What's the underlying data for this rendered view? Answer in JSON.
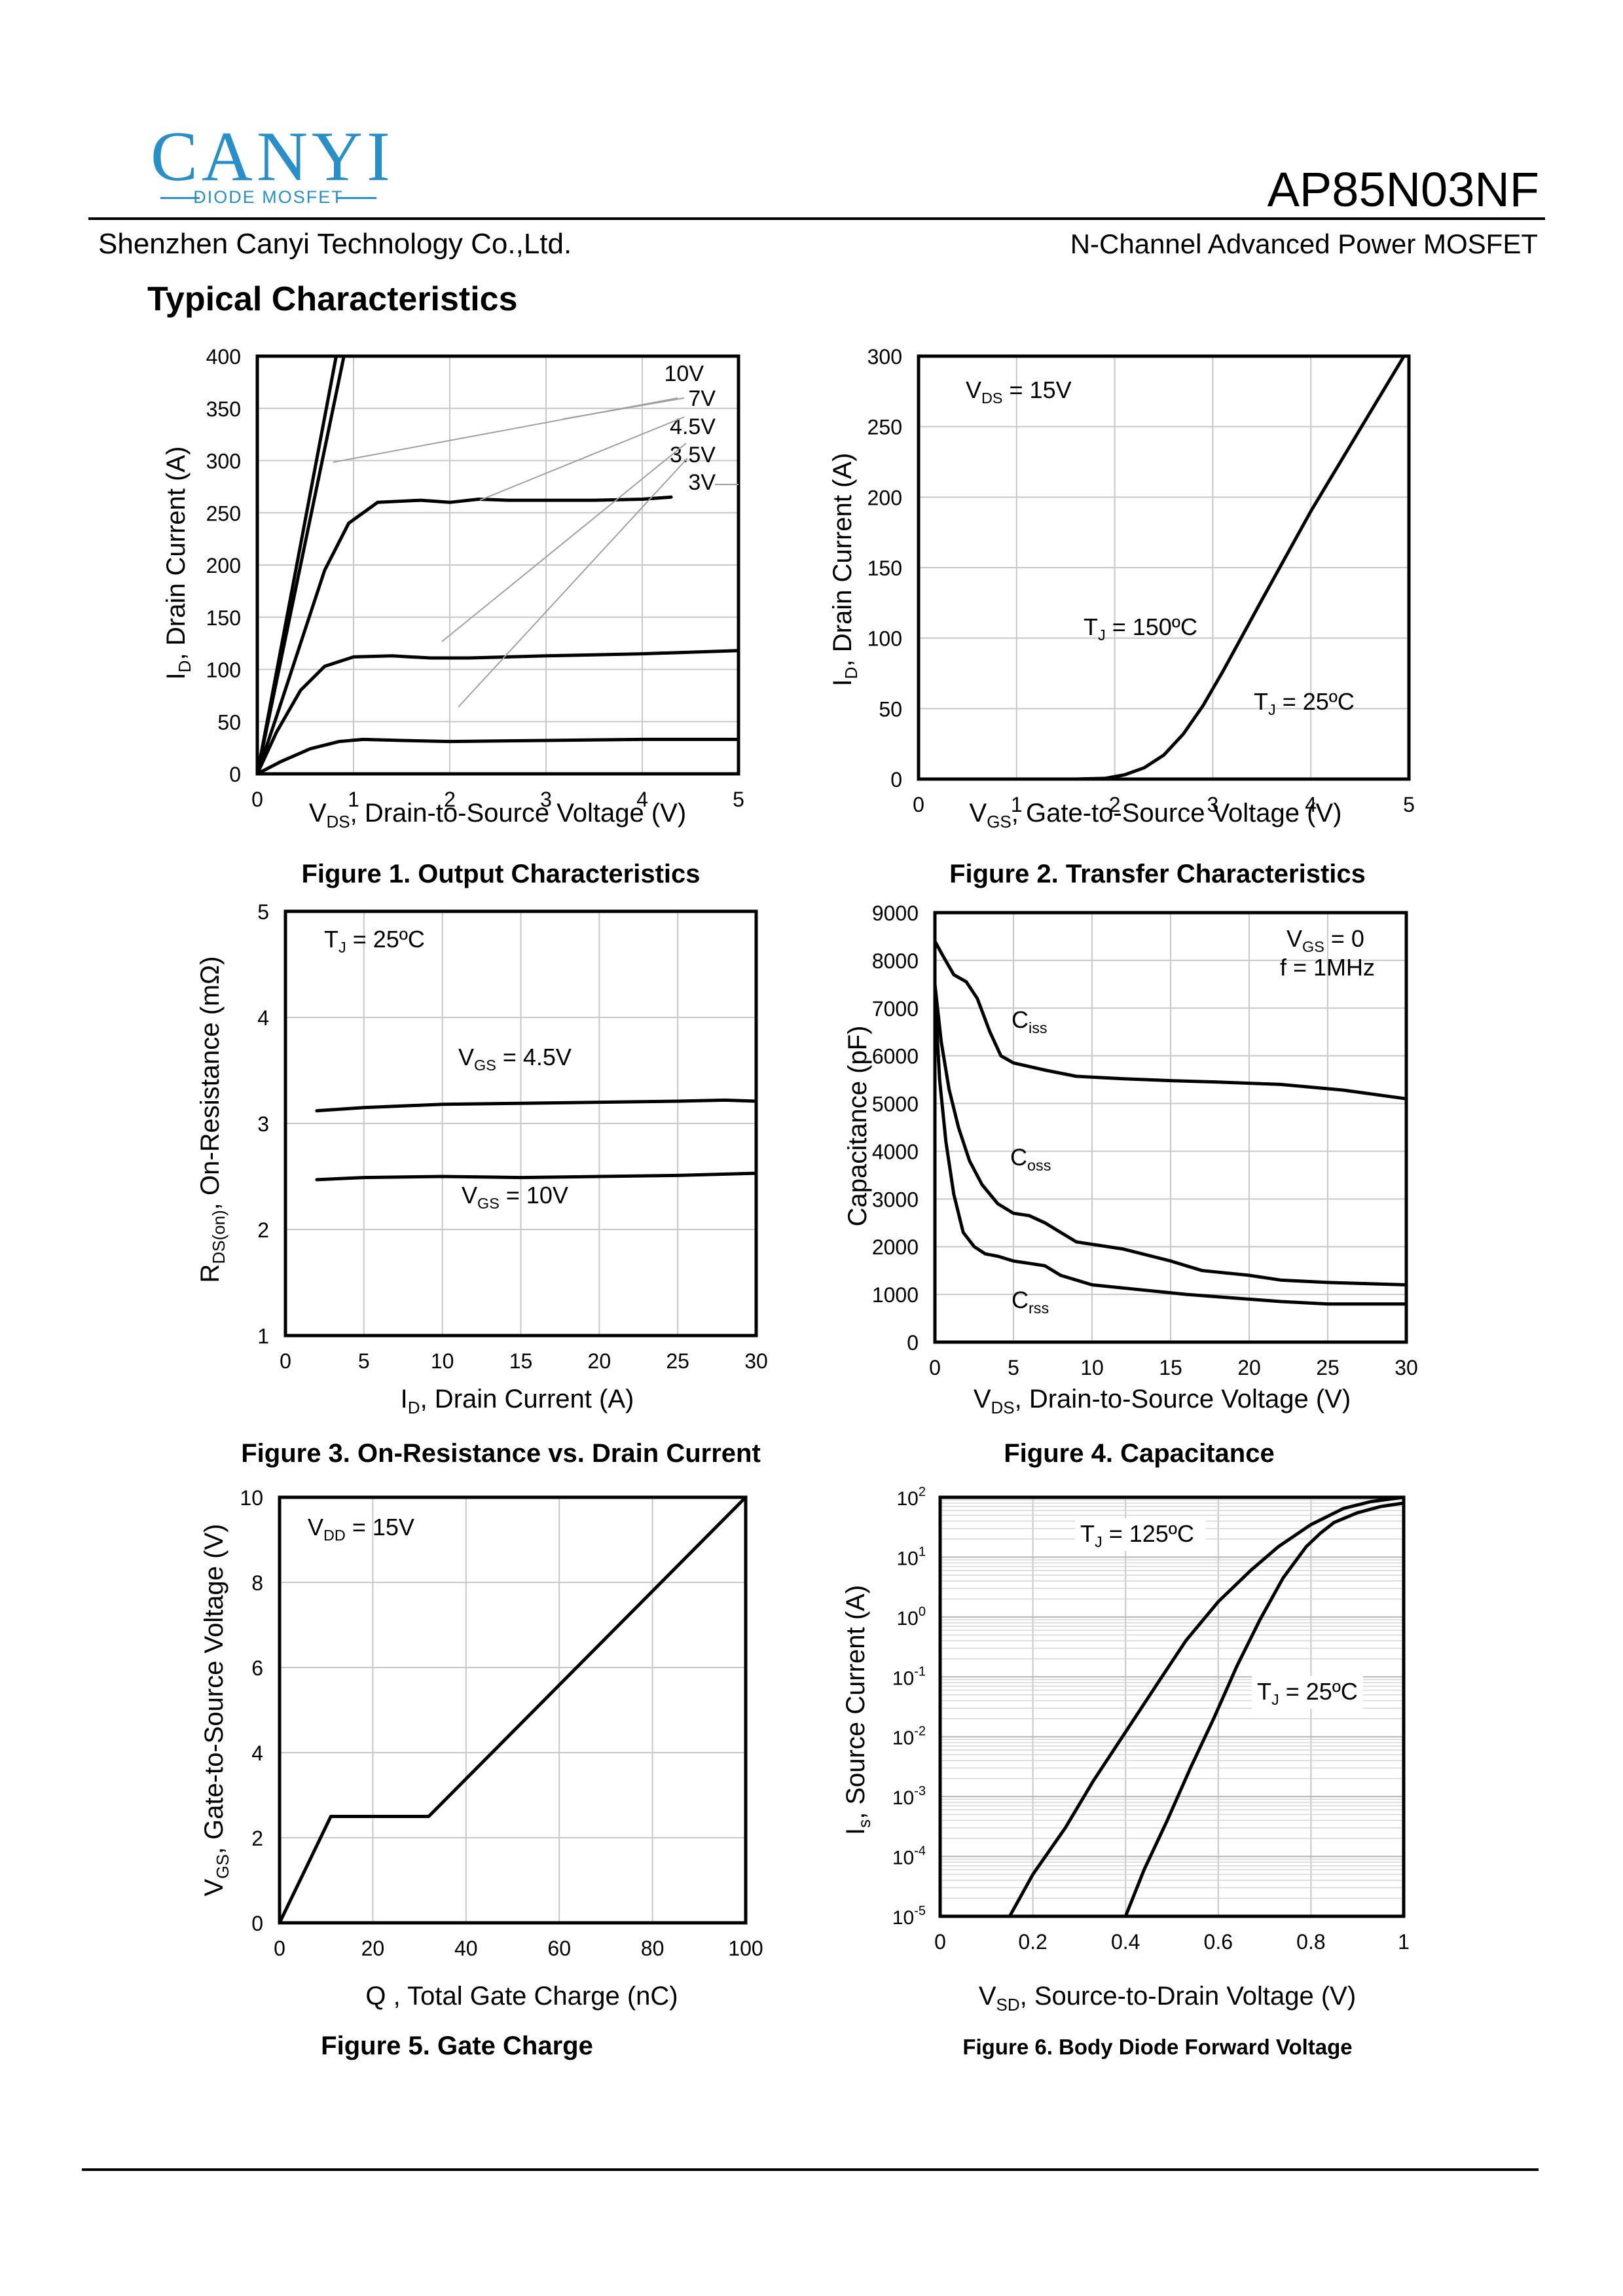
{
  "header": {
    "logo_text": "CANYI",
    "logo_sub": "DIODE MOSFET",
    "part_number": "AP85N03NF",
    "company": "Shenzhen Canyi Technology Co.,Ltd.",
    "device_type": "N-Channel Advanced Power MOSFET",
    "section_title": "Typical Characteristics"
  },
  "chart_data": [
    {
      "id": "fig1",
      "type": "line",
      "caption": "Figure 1. Output Characteristics",
      "xlabel": "VDS, Drain-to-Source Voltage (V)",
      "ylabel": "ID, Drain Current (A)",
      "xlim": [
        0,
        5
      ],
      "ylim": [
        0,
        400
      ],
      "xticks": [
        0,
        1,
        2,
        3,
        4,
        5
      ],
      "yticks": [
        0,
        50,
        100,
        150,
        200,
        250,
        300,
        350,
        400
      ],
      "grid": true,
      "series": [
        {
          "name": "10V",
          "x": [
            0,
            0.82
          ],
          "y": [
            0,
            400
          ]
        },
        {
          "name": "7V",
          "x": [
            0,
            0.9
          ],
          "y": [
            0,
            400
          ]
        },
        {
          "name": "4.5V",
          "x": [
            0,
            0.2,
            0.45,
            0.7,
            0.95,
            1.25,
            1.7,
            2.0,
            2.3,
            2.6,
            3.0,
            3.5,
            4.0,
            4.3
          ],
          "y": [
            0,
            55,
            125,
            195,
            240,
            260,
            262,
            260,
            263,
            262,
            262,
            262,
            263,
            265
          ]
        },
        {
          "name": "3.5V",
          "x": [
            0,
            0.2,
            0.45,
            0.7,
            1.0,
            1.4,
            1.8,
            2.2,
            3.0,
            4.0,
            5.0
          ],
          "y": [
            0,
            40,
            80,
            103,
            112,
            113,
            111,
            111,
            113,
            115,
            118
          ]
        },
        {
          "name": "3V",
          "x": [
            0,
            0.25,
            0.55,
            0.85,
            1.1,
            1.5,
            2.0,
            3.0,
            4.0,
            5.0
          ],
          "y": [
            0,
            12,
            24,
            31,
            33,
            32,
            31,
            32,
            33,
            33
          ]
        }
      ]
    },
    {
      "id": "fig2",
      "type": "line",
      "caption": "Figure 2. Transfer Characteristics",
      "xlabel": "VGS, Gate-to-Source Voltage (V)",
      "ylabel": "ID, Drain Current (A)",
      "xlim": [
        0,
        5
      ],
      "ylim": [
        0,
        300
      ],
      "xticks": [
        0,
        1,
        2,
        3,
        4,
        5
      ],
      "yticks": [
        0,
        50,
        100,
        150,
        200,
        250,
        300
      ],
      "grid": true,
      "annotations": [
        "VDS = 15V",
        "TJ = 150ºC",
        "TJ = 25ºC"
      ],
      "series": [
        {
          "name": "TJ = 25ºC",
          "x": [
            1.6,
            1.9,
            2.1,
            2.3,
            2.5,
            2.7,
            2.9,
            3.1,
            3.5,
            4.0,
            4.5,
            4.95
          ],
          "y": [
            0,
            0.5,
            3,
            8,
            17,
            32,
            52,
            76,
            127,
            190,
            248,
            300
          ]
        }
      ]
    },
    {
      "id": "fig3",
      "type": "line",
      "caption": "Figure 3. On-Resistance vs. Drain Current",
      "xlabel": "ID, Drain Current (A)",
      "ylabel": "RDS(on), On-Resistance (mΩ)",
      "xlim": [
        0,
        30
      ],
      "ylim": [
        1,
        5
      ],
      "xticks": [
        0,
        5,
        10,
        15,
        20,
        25,
        30
      ],
      "yticks": [
        1,
        2,
        3,
        4,
        5
      ],
      "grid": true,
      "annotations": [
        "TJ = 25ºC"
      ],
      "series": [
        {
          "name": "VGS = 4.5V",
          "x": [
            2,
            5,
            10,
            15,
            20,
            25,
            28,
            30
          ],
          "y": [
            3.12,
            3.15,
            3.18,
            3.19,
            3.2,
            3.21,
            3.22,
            3.21
          ]
        },
        {
          "name": "VGS = 10V",
          "x": [
            2,
            5,
            10,
            15,
            20,
            25,
            30
          ],
          "y": [
            2.47,
            2.49,
            2.5,
            2.49,
            2.5,
            2.51,
            2.53
          ]
        }
      ]
    },
    {
      "id": "fig4",
      "type": "line",
      "caption": "Figure 4. Capacitance",
      "xlabel": "VDS, Drain-to-Source Voltage (V)",
      "ylabel": "Capacitance (pF)",
      "xlim": [
        0,
        30
      ],
      "ylim": [
        0,
        9000
      ],
      "xticks": [
        0,
        5,
        10,
        15,
        20,
        25,
        30
      ],
      "yticks": [
        0,
        1000,
        2000,
        3000,
        4000,
        5000,
        6000,
        7000,
        8000,
        9000
      ],
      "grid": true,
      "annotations": [
        "VGS = 0",
        "f = 1MHz"
      ],
      "series": [
        {
          "name": "Ciss",
          "x": [
            0,
            0.5,
            1.2,
            2,
            2.7,
            3.5,
            4.2,
            5,
            7,
            9,
            12,
            15,
            18,
            22,
            26,
            30
          ],
          "y": [
            8400,
            8100,
            7700,
            7550,
            7200,
            6500,
            6000,
            5850,
            5700,
            5570,
            5520,
            5480,
            5450,
            5400,
            5280,
            5100
          ]
        },
        {
          "name": "Coss",
          "x": [
            0,
            0.4,
            0.9,
            1.5,
            2.2,
            3,
            4,
            5,
            6,
            7,
            8,
            9,
            12,
            15,
            17,
            20,
            22,
            25,
            30
          ],
          "y": [
            7500,
            6300,
            5300,
            4500,
            3800,
            3300,
            2900,
            2700,
            2650,
            2500,
            2300,
            2100,
            1950,
            1700,
            1500,
            1400,
            1300,
            1250,
            1200
          ]
        },
        {
          "name": "Crss",
          "x": [
            0,
            0.3,
            0.7,
            1.2,
            1.8,
            2.5,
            3.2,
            4,
            5,
            6,
            7,
            8,
            10,
            13,
            16,
            20,
            22,
            25,
            30
          ],
          "y": [
            7300,
            5500,
            4200,
            3100,
            2300,
            2000,
            1850,
            1800,
            1700,
            1650,
            1600,
            1400,
            1200,
            1100,
            1000,
            900,
            850,
            800,
            800
          ]
        }
      ]
    },
    {
      "id": "fig5",
      "type": "line",
      "caption": "Figure 5. Gate Charge",
      "xlabel": "Q , Total Gate Charge (nC)",
      "ylabel": "VGS, Gate-to-Source Voltage (V)",
      "xlim": [
        0,
        100
      ],
      "ylim": [
        0,
        10
      ],
      "xticks": [
        0,
        20,
        40,
        60,
        80,
        100
      ],
      "yticks": [
        0,
        2,
        4,
        6,
        8,
        10
      ],
      "grid": true,
      "annotations": [
        "VDD = 15V"
      ],
      "series": [
        {
          "name": "VGS",
          "x": [
            0,
            11,
            32,
            100
          ],
          "y": [
            0,
            2.5,
            2.5,
            10
          ]
        }
      ]
    },
    {
      "id": "fig6",
      "type": "line",
      "yscale": "log",
      "caption": "Figure 6. Body Diode Forward Voltage",
      "xlabel": "VSD, Source-to-Drain Voltage (V)",
      "ylabel": "Is, Source Current (A)",
      "xlim": [
        0,
        1
      ],
      "ylim": [
        1e-05,
        100
      ],
      "xticks": [
        0,
        0.2,
        0.4,
        0.6,
        0.8,
        1
      ],
      "yticks": [
        "10-5",
        "10-4",
        "10-3",
        "10-2",
        "10-1",
        "100",
        "101",
        "102"
      ],
      "grid": true,
      "series": [
        {
          "name": "TJ = 125ºC",
          "x": [
            0.15,
            0.2,
            0.27,
            0.33,
            0.4,
            0.47,
            0.53,
            0.6,
            0.67,
            0.73,
            0.8,
            0.87,
            0.93,
            1.0
          ],
          "y": [
            1e-05,
            5e-05,
            0.0003,
            0.0018,
            0.012,
            0.08,
            0.4,
            1.8,
            6,
            15,
            35,
            65,
            85,
            100
          ]
        },
        {
          "name": "TJ = 25ºC",
          "x": [
            0.4,
            0.44,
            0.49,
            0.54,
            0.59,
            0.64,
            0.69,
            0.74,
            0.79,
            0.82,
            0.85,
            0.9,
            0.95,
            1.0
          ],
          "y": [
            1e-05,
            6e-05,
            0.0004,
            0.003,
            0.02,
            0.15,
            0.9,
            4.5,
            15,
            25,
            38,
            55,
            70,
            80
          ]
        }
      ]
    }
  ]
}
